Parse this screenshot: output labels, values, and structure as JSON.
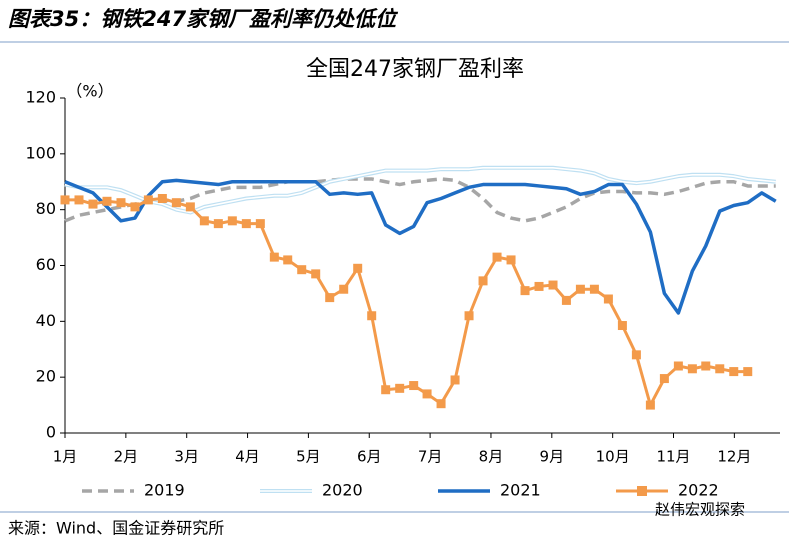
{
  "header": {
    "title": "图表35：钢铁247家钢厂盈利率仍处低位"
  },
  "chart_data": {
    "type": "line",
    "title": "全国247家钢厂盈利率",
    "y_label": "（%）",
    "x": [
      1.0,
      1.23,
      1.46,
      1.69,
      1.92,
      2.15,
      2.37,
      2.6,
      2.83,
      3.06,
      3.29,
      3.52,
      3.75,
      3.98,
      4.21,
      4.44,
      4.66,
      4.89,
      5.12,
      5.35,
      5.58,
      5.81,
      6.04,
      6.27,
      6.5,
      6.73,
      6.95,
      7.18,
      7.41,
      7.64,
      7.87,
      8.1,
      8.33,
      8.56,
      8.79,
      9.02,
      9.24,
      9.47,
      9.7,
      9.93,
      10.16,
      10.39,
      10.62,
      10.85,
      11.08,
      11.31,
      11.53,
      11.76,
      11.99,
      12.22,
      12.45,
      12.68
    ],
    "xlim": [
      1,
      12.75
    ],
    "xticks": [
      {
        "value": 1,
        "label": "1月"
      },
      {
        "value": 2,
        "label": "2月"
      },
      {
        "value": 3,
        "label": "3月"
      },
      {
        "value": 4,
        "label": "4月"
      },
      {
        "value": 5,
        "label": "5月"
      },
      {
        "value": 6,
        "label": "6月"
      },
      {
        "value": 7,
        "label": "7月"
      },
      {
        "value": 8,
        "label": "8月"
      },
      {
        "value": 9,
        "label": "9月"
      },
      {
        "value": 10,
        "label": "10月"
      },
      {
        "value": 11,
        "label": "11月"
      },
      {
        "value": 12,
        "label": "12月"
      }
    ],
    "ylim": [
      0,
      120
    ],
    "yticks": [
      0,
      20,
      40,
      60,
      80,
      100,
      120
    ],
    "grid": false,
    "series": [
      {
        "name": "2019",
        "color": "#a6a6a6",
        "style": "dashed",
        "values": [
          76,
          78,
          79,
          80,
          81,
          82,
          83,
          83.5,
          83,
          84,
          86,
          87,
          88,
          88,
          88,
          89,
          90,
          90,
          90,
          90.5,
          91,
          91,
          91,
          90,
          89,
          90,
          90.5,
          91,
          90.5,
          88,
          84,
          79,
          77,
          76,
          77,
          79,
          81,
          84,
          86,
          86.5,
          86.5,
          86,
          86,
          85.5,
          86.5,
          88,
          89.5,
          90,
          90,
          88.5,
          88.5,
          88.5
        ]
      },
      {
        "name": "2020",
        "color": "#bfe0f2",
        "style": "double",
        "values": [
          89,
          88,
          88,
          88,
          87,
          85,
          83,
          82,
          80,
          79,
          81,
          82,
          83,
          84,
          84.5,
          85,
          85,
          86,
          88,
          90,
          91,
          92,
          93,
          94,
          94,
          94,
          94,
          94.5,
          94.5,
          94.5,
          95,
          95,
          95,
          95,
          95,
          95,
          94.5,
          94,
          93,
          91,
          90,
          89.5,
          90,
          91,
          92,
          92.5,
          92.5,
          92.5,
          92,
          91,
          90.5,
          90
        ]
      },
      {
        "name": "2021",
        "color": "#1f6dc4",
        "style": "solid",
        "values": [
          90,
          88,
          86,
          81,
          76,
          77,
          85,
          90,
          90.5,
          90,
          89.5,
          89,
          90,
          90,
          90,
          90,
          90,
          90,
          90,
          85.5,
          86,
          85.5,
          86,
          74.5,
          71.5,
          74,
          82.5,
          84,
          86,
          88,
          89,
          89,
          89,
          89,
          88.5,
          88,
          87.5,
          85.5,
          86.5,
          89,
          89,
          82,
          72,
          50,
          43,
          58,
          67,
          79.5,
          81.5,
          82.5,
          86,
          83
        ]
      },
      {
        "name": "2022",
        "color": "#f39a4a",
        "style": "marker",
        "values": [
          83.5,
          83.5,
          82,
          83,
          82.5,
          81,
          83.5,
          84,
          82.5,
          81,
          76,
          75,
          76,
          75,
          75,
          63,
          62,
          58.5,
          57,
          48.5,
          51.5,
          59,
          42,
          15.5,
          16,
          17,
          14,
          10.5,
          19,
          42,
          54.5,
          63,
          62,
          51,
          52.5,
          53,
          47.5,
          51.5,
          51.5,
          48,
          38.5,
          28,
          10,
          19.5,
          24,
          23,
          24,
          23,
          22,
          22,
          null,
          null
        ]
      }
    ]
  },
  "source": "来源：Wind、国金证券研究所",
  "watermark": "赵伟宏观探索"
}
